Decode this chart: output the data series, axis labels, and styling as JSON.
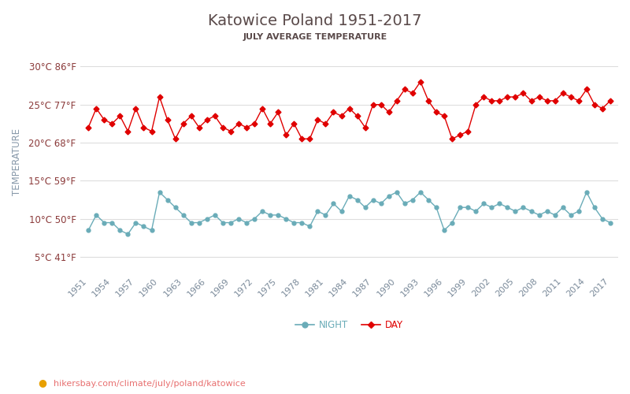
{
  "title": "Katowice Poland 1951-2017",
  "subtitle": "JULY AVERAGE TEMPERATURE",
  "ylabel": "TEMPERATURE",
  "xlabel_url": "hikersbay.com/climate/july/poland/katowice",
  "years": [
    1951,
    1952,
    1953,
    1954,
    1955,
    1956,
    1957,
    1958,
    1959,
    1960,
    1961,
    1962,
    1963,
    1964,
    1965,
    1966,
    1967,
    1968,
    1969,
    1970,
    1971,
    1972,
    1973,
    1974,
    1975,
    1976,
    1977,
    1978,
    1979,
    1980,
    1981,
    1982,
    1983,
    1984,
    1985,
    1986,
    1987,
    1988,
    1989,
    1990,
    1991,
    1992,
    1993,
    1994,
    1995,
    1996,
    1997,
    1998,
    1999,
    2000,
    2001,
    2002,
    2003,
    2004,
    2005,
    2006,
    2007,
    2008,
    2009,
    2010,
    2011,
    2012,
    2013,
    2014,
    2015,
    2016,
    2017
  ],
  "day_temps": [
    22.0,
    24.5,
    23.0,
    22.5,
    23.5,
    21.5,
    24.5,
    22.0,
    21.5,
    26.0,
    23.0,
    20.5,
    22.5,
    23.5,
    22.0,
    23.0,
    23.5,
    22.0,
    21.5,
    22.5,
    22.0,
    22.5,
    24.5,
    22.5,
    24.0,
    21.0,
    22.5,
    20.5,
    20.5,
    23.0,
    22.5,
    24.0,
    23.5,
    24.5,
    23.5,
    22.0,
    25.0,
    25.0,
    24.0,
    25.5,
    27.0,
    26.5,
    28.0,
    25.5,
    24.0,
    23.5,
    20.5,
    21.0,
    21.5,
    25.0,
    26.0,
    25.5,
    25.5,
    26.0,
    26.0,
    26.5,
    25.5,
    26.0,
    25.5,
    25.5,
    26.5,
    26.0,
    25.5,
    27.0,
    25.0,
    24.5,
    25.5
  ],
  "night_temps": [
    8.5,
    10.5,
    9.5,
    9.5,
    8.5,
    8.0,
    9.5,
    9.0,
    8.5,
    13.5,
    12.5,
    11.5,
    10.5,
    9.5,
    9.5,
    10.0,
    10.5,
    9.5,
    9.5,
    10.0,
    9.5,
    10.0,
    11.0,
    10.5,
    10.5,
    10.0,
    9.5,
    9.5,
    9.0,
    11.0,
    10.5,
    12.0,
    11.0,
    13.0,
    12.5,
    11.5,
    12.5,
    12.0,
    13.0,
    13.5,
    12.0,
    12.5,
    13.5,
    12.5,
    11.5,
    8.5,
    9.5,
    11.5,
    11.5,
    11.0,
    12.0,
    11.5,
    12.0,
    11.5,
    11.0,
    11.5,
    11.0,
    10.5,
    11.0,
    10.5,
    11.5,
    10.5,
    11.0,
    13.5,
    11.5,
    10.0,
    9.5
  ],
  "yticks_c": [
    5,
    10,
    15,
    20,
    25,
    30
  ],
  "yticks_f": [
    41,
    50,
    59,
    68,
    77,
    86
  ],
  "ylim": [
    3,
    32
  ],
  "xlim_left": 1950.0,
  "xlim_right": 2018.0,
  "xtick_years": [
    1951,
    1954,
    1957,
    1960,
    1963,
    1966,
    1969,
    1972,
    1975,
    1978,
    1981,
    1984,
    1987,
    1990,
    1993,
    1996,
    1999,
    2002,
    2005,
    2008,
    2011,
    2014,
    2017
  ],
  "day_color": "#e00000",
  "night_color": "#6aacb8",
  "title_color": "#5a4a4a",
  "subtitle_color": "#5a4a4a",
  "ylabel_color": "#8899aa",
  "ytick_color": "#8b3a3a",
  "xtick_color": "#7a8a9a",
  "grid_color": "#dddddd",
  "bg_color": "#ffffff",
  "url_color": "#e87070",
  "url_dot_color": "#e8a000",
  "legend_night": "NIGHT",
  "legend_day": "DAY",
  "day_marker": "D",
  "night_marker": "o",
  "marker_size_day": 3.5,
  "marker_size_night": 3.5,
  "linewidth": 1.0,
  "title_fontsize": 14,
  "subtitle_fontsize": 8,
  "ytick_fontsize": 8.5,
  "xtick_fontsize": 8,
  "ylabel_fontsize": 8.5,
  "legend_fontsize": 8.5
}
